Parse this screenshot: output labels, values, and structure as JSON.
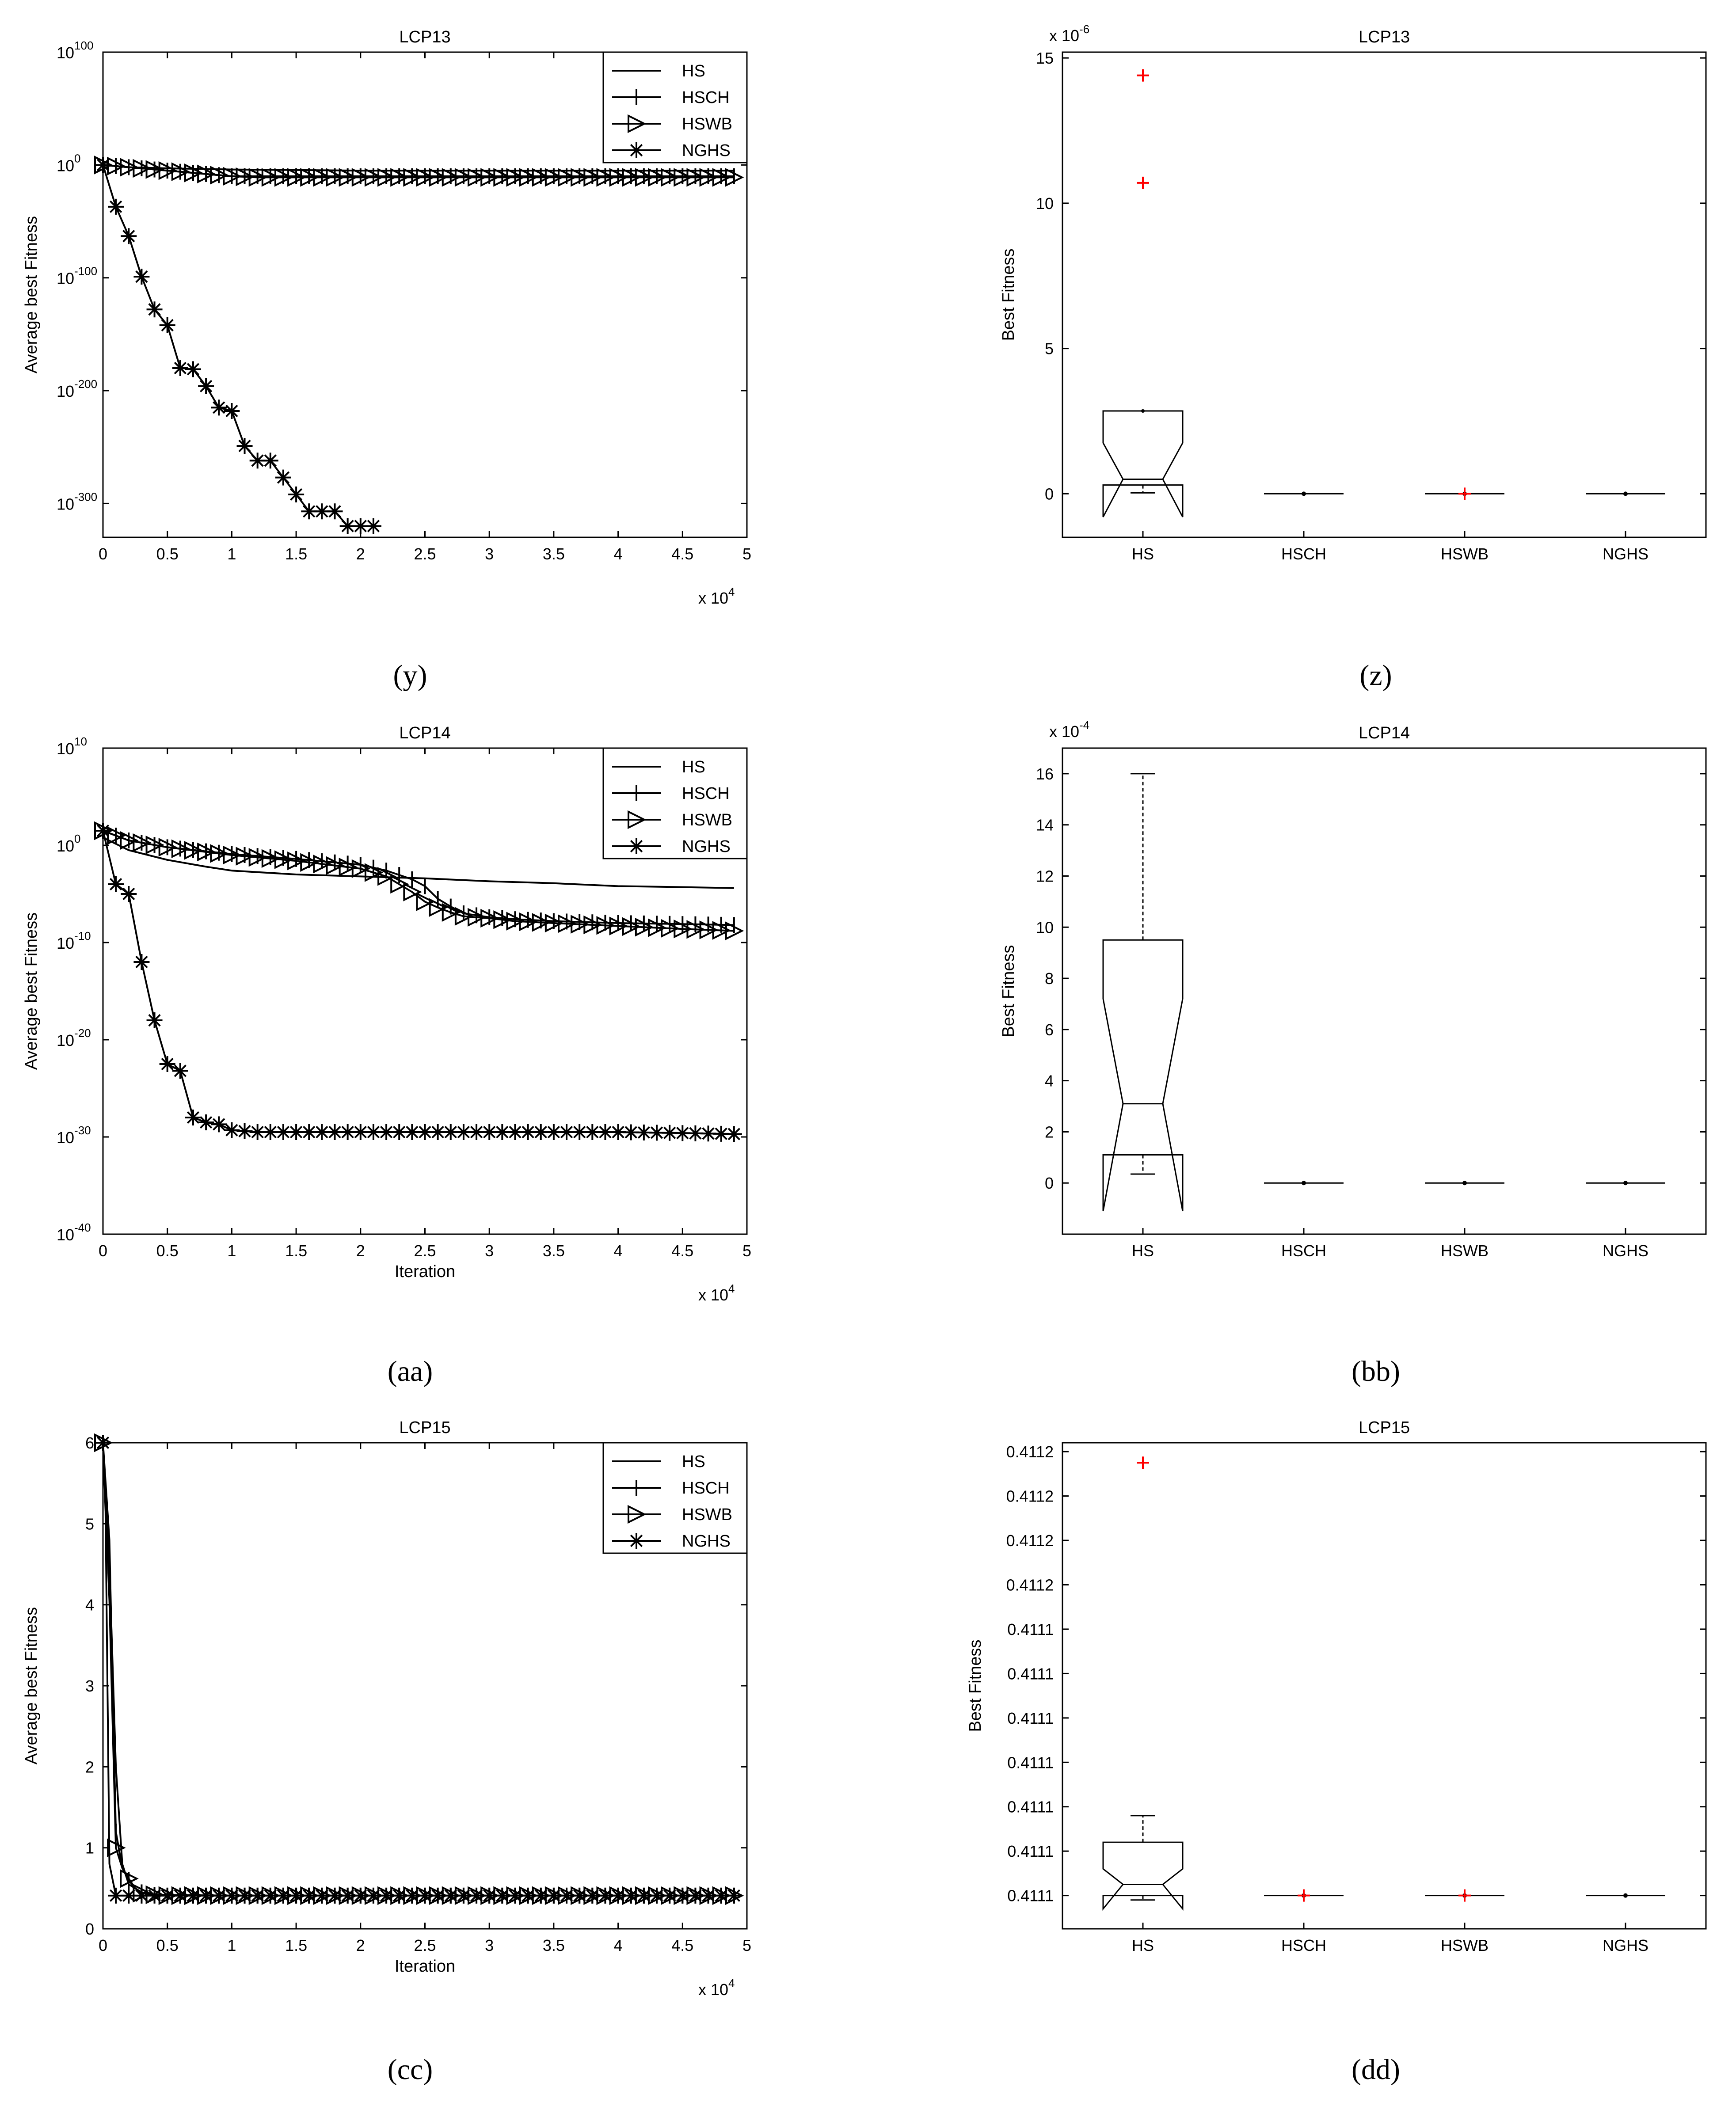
{
  "panels": [
    {
      "id": "y",
      "chart_data": {
        "type": "line",
        "title": "LCP13",
        "xlabel": "",
        "ylabel": "Average best Fitness",
        "xlim": [
          0,
          50000
        ],
        "x_tick_labels": [
          "0",
          "0.5",
          "1",
          "1.5",
          "2",
          "2.5",
          "3",
          "3.5",
          "4",
          "4.5",
          "5"
        ],
        "x_multiplier": [
          "x 10",
          "4"
        ],
        "yscale": "log",
        "ylim_exp": [
          -330,
          100
        ],
        "y_tick_exps": [
          100,
          0,
          -100,
          -200,
          -300
        ],
        "legend_position": "top-right",
        "series": [
          {
            "name": "HS",
            "marker": "none",
            "x": [
              0,
              2000,
              5000,
              10000,
              20000,
              30000,
              40000,
              49000
            ],
            "y_exp": [
              0,
              -2,
              -3,
              -4,
              -5,
              -5,
              -5,
              -5
            ]
          },
          {
            "name": "HSCH",
            "marker": "plus",
            "x": [
              0,
              1000,
              2000,
              3000,
              4000,
              5000,
              6000,
              7000,
              8000,
              9000,
              10000,
              12000,
              15000,
              20000,
              25000,
              30000,
              35000,
              40000,
              45000,
              49000
            ],
            "y_exp": [
              0,
              -1,
              -2,
              -3,
              -4,
              -5,
              -6,
              -7,
              -8,
              -9,
              -10,
              -10,
              -10,
              -10,
              -10,
              -10,
              -10,
              -10,
              -10,
              -10
            ]
          },
          {
            "name": "HSWB",
            "marker": "triangle-right",
            "x": [
              0,
              1000,
              2000,
              3000,
              4000,
              5000,
              6000,
              7000,
              8000,
              9000,
              10000,
              12000,
              15000,
              20000,
              25000,
              30000,
              35000,
              40000,
              45000,
              49000
            ],
            "y_exp": [
              0,
              -1,
              -2,
              -3,
              -4,
              -5,
              -6,
              -7,
              -8,
              -9,
              -10,
              -11,
              -11,
              -11,
              -11,
              -11,
              -11,
              -11,
              -11,
              -11
            ]
          },
          {
            "name": "NGHS",
            "marker": "star",
            "x": [
              0,
              1000,
              2000,
              3000,
              4000,
              5000,
              6000,
              7000,
              8000,
              9000,
              10000,
              11000,
              12000,
              13000,
              14000,
              15000,
              16000,
              17000,
              18000,
              19000,
              20000,
              21000
            ],
            "y_exp": [
              0,
              -37,
              -63,
              -99,
              -128,
              -142,
              -180,
              -181,
              -196,
              -215,
              -218,
              -249,
              -262,
              -262,
              -277,
              -292,
              -307,
              -307,
              -307,
              -320,
              -320,
              -320
            ]
          }
        ]
      }
    },
    {
      "id": "z",
      "chart_data": {
        "type": "box",
        "title": "LCP13",
        "xlabel": "",
        "ylabel": "Best Fitness",
        "categories": [
          "HS",
          "HSCH",
          "HSWB",
          "NGHS"
        ],
        "y_multiplier": [
          "x 10",
          "-6"
        ],
        "ylim": [
          -1.5,
          15.2
        ],
        "y_ticks": [
          0,
          5,
          10,
          15
        ],
        "y_tick_labels": [
          "0",
          "5",
          "10",
          "15"
        ],
        "boxes": [
          {
            "q1": 0.3,
            "median": 0.5,
            "q3": 2.85,
            "whisker_low": 0.03,
            "whisker_high": 2.85,
            "notch_low": -0.8,
            "notch_high": 1.75,
            "outliers": [
              14.4,
              10.7
            ]
          },
          {
            "q1": 0,
            "median": 0,
            "q3": 0,
            "whisker_low": 0,
            "whisker_high": 0,
            "outliers": []
          },
          {
            "q1": 0,
            "median": 0,
            "q3": 0,
            "whisker_low": 0,
            "whisker_high": 0,
            "outliers": [
              0
            ]
          },
          {
            "q1": 0,
            "median": 0,
            "q3": 0,
            "whisker_low": 0,
            "whisker_high": 0,
            "outliers": []
          }
        ]
      }
    },
    {
      "id": "aa",
      "chart_data": {
        "type": "line",
        "title": "LCP14",
        "xlabel": "Iteration",
        "ylabel": "Average best Fitness",
        "xlim": [
          0,
          50000
        ],
        "x_tick_labels": [
          "0",
          "0.5",
          "1",
          "1.5",
          "2",
          "2.5",
          "3",
          "3.5",
          "4",
          "4.5",
          "5"
        ],
        "x_multiplier": [
          "x 10",
          "4"
        ],
        "yscale": "log",
        "ylim_exp": [
          -40,
          10
        ],
        "y_tick_exps": [
          10,
          0,
          -10,
          -20,
          -30,
          -40
        ],
        "legend_position": "top-right",
        "series": [
          {
            "name": "HS",
            "marker": "none",
            "x": [
              0,
              2000,
              5000,
              8000,
              10000,
              15000,
              20000,
              25000,
              30000,
              35000,
              40000,
              45000,
              49000
            ],
            "y_exp": [
              0.8,
              -0.5,
              -1.5,
              -2.2,
              -2.6,
              -3.0,
              -3.2,
              -3.4,
              -3.7,
              -3.9,
              -4.2,
              -4.3,
              -4.4
            ]
          },
          {
            "name": "HSCH",
            "marker": "plus",
            "x": [
              0,
              2000,
              5000,
              10000,
              15000,
              20000,
              22000,
              24000,
              25000,
              26000,
              27000,
              28000,
              30000,
              32000,
              35000,
              40000,
              45000,
              49000
            ],
            "y_exp": [
              1.5,
              0.5,
              -0.2,
              -0.9,
              -1.4,
              -2.0,
              -2.6,
              -3.5,
              -4.2,
              -5.5,
              -6.3,
              -7.0,
              -7.4,
              -7.6,
              -7.8,
              -8.0,
              -8.1,
              -8.2
            ]
          },
          {
            "name": "HSWB",
            "marker": "triangle-right",
            "x": [
              0,
              2000,
              5000,
              10000,
              15000,
              20000,
              22000,
              24000,
              25000,
              26000,
              27000,
              28000,
              30000,
              32000,
              35000,
              40000,
              45000,
              49000
            ],
            "y_exp": [
              1.5,
              0.5,
              -0.2,
              -1.0,
              -1.6,
              -2.4,
              -3.2,
              -4.8,
              -5.8,
              -6.4,
              -6.9,
              -7.3,
              -7.5,
              -7.8,
              -8.0,
              -8.3,
              -8.6,
              -8.8
            ]
          },
          {
            "name": "NGHS",
            "marker": "star",
            "x": [
              0,
              1000,
              2000,
              3000,
              4000,
              5000,
              6000,
              7000,
              8000,
              9000,
              10000,
              11000,
              12000,
              14000,
              16000,
              20000,
              25000,
              30000,
              35000,
              40000,
              45000,
              49000
            ],
            "y_exp": [
              1.5,
              -4.0,
              -5.0,
              -12.0,
              -18.0,
              -22.5,
              -23.2,
              -28.0,
              -28.5,
              -28.7,
              -29.3,
              -29.4,
              -29.5,
              -29.5,
              -29.5,
              -29.5,
              -29.5,
              -29.5,
              -29.5,
              -29.5,
              -29.6,
              -29.7
            ]
          }
        ]
      }
    },
    {
      "id": "bb",
      "chart_data": {
        "type": "box",
        "title": "LCP14",
        "xlabel": "",
        "ylabel": "Best Fitness",
        "categories": [
          "HS",
          "HSCH",
          "HSWB",
          "NGHS"
        ],
        "y_multiplier": [
          "x 10",
          "-4"
        ],
        "ylim": [
          -2,
          17
        ],
        "y_ticks": [
          0,
          2,
          4,
          6,
          8,
          10,
          12,
          14,
          16
        ],
        "y_tick_labels": [
          "0",
          "2",
          "4",
          "6",
          "8",
          "10",
          "12",
          "14",
          "16"
        ],
        "boxes": [
          {
            "q1": 1.1,
            "median": 3.1,
            "q3": 9.5,
            "whisker_low": 0.35,
            "whisker_high": 16.0,
            "notch_low": -1.1,
            "notch_high": 7.2,
            "outliers": []
          },
          {
            "q1": 0,
            "median": 0,
            "q3": 0,
            "whisker_low": 0,
            "whisker_high": 0,
            "outliers": []
          },
          {
            "q1": 0,
            "median": 0,
            "q3": 0,
            "whisker_low": 0,
            "whisker_high": 0,
            "outliers": []
          },
          {
            "q1": 0,
            "median": 0,
            "q3": 0,
            "whisker_low": 0,
            "whisker_high": 0,
            "outliers": []
          }
        ]
      }
    },
    {
      "id": "cc",
      "chart_data": {
        "type": "line",
        "title": "LCP15",
        "xlabel": "Iteration",
        "ylabel": "Average best Fitness",
        "xlim": [
          0,
          50000
        ],
        "x_tick_labels": [
          "0",
          "0.5",
          "1",
          "1.5",
          "2",
          "2.5",
          "3",
          "3.5",
          "4",
          "4.5",
          "5"
        ],
        "x_multiplier": [
          "x 10",
          "4"
        ],
        "yscale": "linear",
        "ylim": [
          0,
          6
        ],
        "y_ticks": [
          0,
          1,
          2,
          3,
          4,
          5,
          6
        ],
        "legend_position": "top-right",
        "series": [
          {
            "name": "HS",
            "marker": "none",
            "x": [
              0,
              500,
              1000,
              1500,
              2000,
              3000,
              4000,
              10000,
              20000,
              30000,
              40000,
              49000
            ],
            "y_exp": [
              6.0,
              4.5,
              2.0,
              0.8,
              0.55,
              0.45,
              0.42,
              0.41,
              0.41,
              0.41,
              0.41,
              0.41
            ]
          },
          {
            "name": "HSCH",
            "marker": "plus",
            "x": [
              0,
              500,
              1000,
              1500,
              2000,
              2500,
              3000,
              4000,
              5000,
              10000,
              20000,
              30000,
              40000,
              49000
            ],
            "y_exp": [
              6.0,
              4.8,
              1.2,
              0.75,
              0.6,
              0.5,
              0.45,
              0.42,
              0.41,
              0.41,
              0.41,
              0.41,
              0.41,
              0.41
            ]
          },
          {
            "name": "HSWB",
            "marker": "triangle-right",
            "x": [
              0,
              500,
              1000,
              1500,
              2000,
              2500,
              3000,
              4000,
              5000,
              10000,
              20000,
              30000,
              40000,
              49000
            ],
            "y_exp": [
              6.0,
              4.05,
              1.0,
              0.75,
              0.62,
              0.5,
              0.44,
              0.42,
              0.41,
              0.41,
              0.41,
              0.41,
              0.41,
              0.41
            ]
          },
          {
            "name": "NGHS",
            "marker": "star",
            "x": [
              0,
              200,
              500,
              1000,
              1500,
              2000,
              5000,
              10000,
              20000,
              30000,
              40000,
              49000
            ],
            "y_exp": [
              6.0,
              5.15,
              0.8,
              0.41,
              0.41,
              0.41,
              0.41,
              0.41,
              0.41,
              0.41,
              0.41,
              0.41
            ]
          }
        ]
      }
    },
    {
      "id": "dd",
      "chart_data": {
        "type": "box",
        "title": "LCP15",
        "xlabel": "",
        "ylabel": "Best Fitness",
        "categories": [
          "HS",
          "HSCH",
          "HSWB",
          "NGHS"
        ],
        "y_multiplier": [
          "",
          ""
        ],
        "ylim": [
          -0.75,
          10.2
        ],
        "y_ticks": [
          0,
          1,
          2,
          3,
          4,
          5,
          6,
          7,
          8,
          9,
          10
        ],
        "y_tick_labels": [
          "0.4111",
          "0.4111",
          "0.4111",
          "0.4111",
          "0.4111",
          "0.4111",
          "0.4111",
          "0.4112",
          "0.4112",
          "0.4112",
          "0.4112"
        ],
        "boxes": [
          {
            "q1": 0,
            "median": 0.25,
            "q3": 1.2,
            "whisker_low": -0.1,
            "whisker_high": 1.8,
            "notch_low": -0.3,
            "notch_high": 0.6,
            "outliers": [
              9.75
            ]
          },
          {
            "q1": 0,
            "median": 0,
            "q3": 0,
            "whisker_low": 0,
            "whisker_high": 0,
            "outliers": [
              0
            ]
          },
          {
            "q1": 0,
            "median": 0,
            "q3": 0,
            "whisker_low": 0,
            "whisker_high": 0,
            "outliers": [
              0
            ]
          },
          {
            "q1": 0,
            "median": 0,
            "q3": 0,
            "whisker_low": 0,
            "whisker_high": 0,
            "outliers": []
          }
        ]
      }
    }
  ],
  "captions": [
    "(y)",
    "(z)",
    "(aa)",
    "(bb)",
    "(cc)",
    "(dd)"
  ],
  "colors": {
    "axis": "#000000",
    "line": "#000000",
    "outlier": "#ff0000",
    "background": "#ffffff"
  }
}
